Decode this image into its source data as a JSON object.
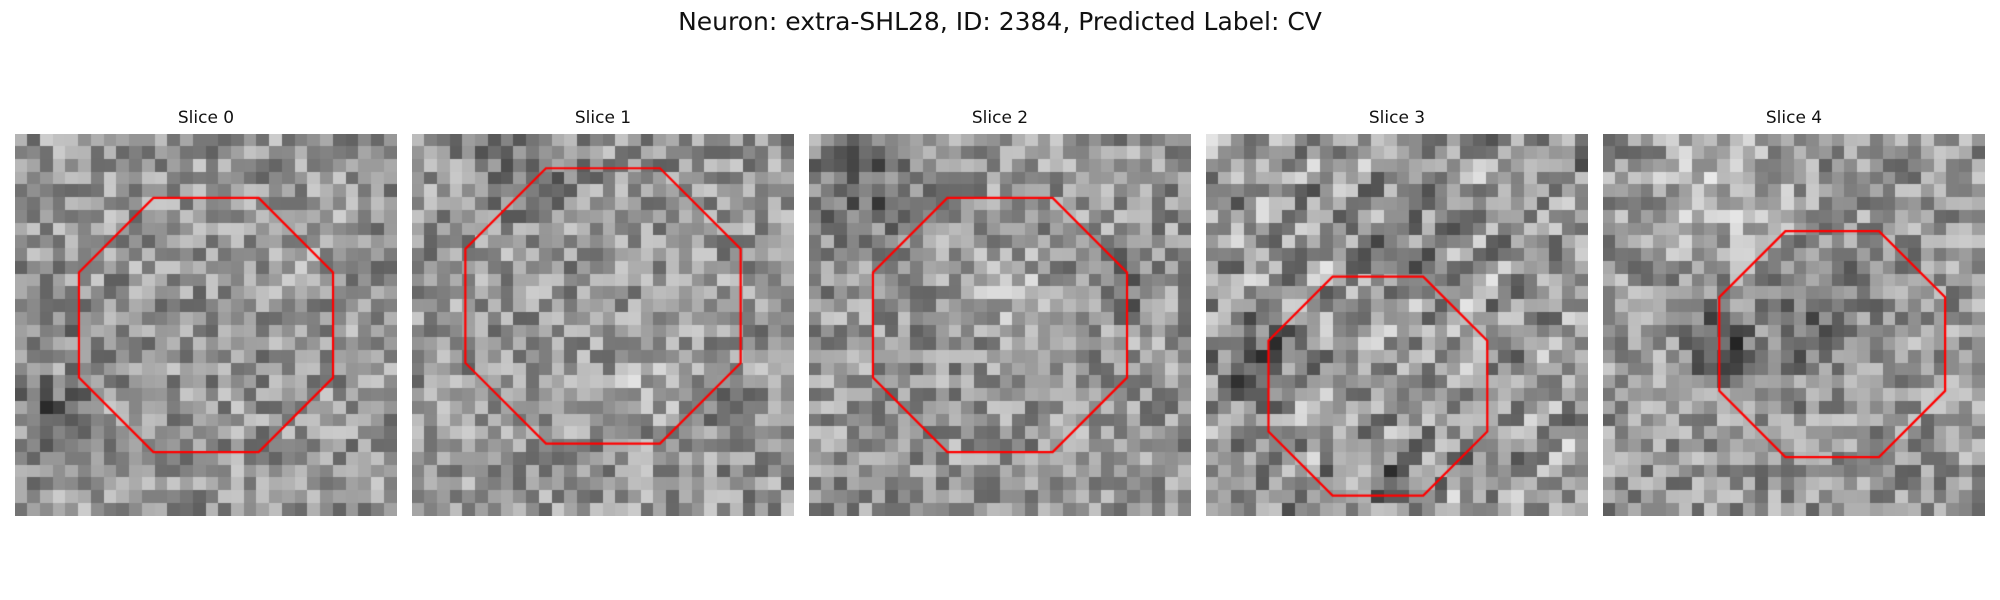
{
  "figure": {
    "title": "Neuron: extra-SHL28, ID: 2384, Predicted Label: CV"
  },
  "style": {
    "contour_color": "#ff0000",
    "colormap": "gray",
    "background": "#ffffff"
  },
  "panels": [
    {
      "label": "Slice 0",
      "contour_center_frac": [
        0.5,
        0.5
      ],
      "contour_radius_frac": 0.36
    },
    {
      "label": "Slice 1",
      "contour_center_frac": [
        0.5,
        0.45
      ],
      "contour_radius_frac": 0.39
    },
    {
      "label": "Slice 2",
      "contour_center_frac": [
        0.5,
        0.5
      ],
      "contour_radius_frac": 0.36
    },
    {
      "label": "Slice 3",
      "contour_center_frac": [
        0.45,
        0.66
      ],
      "contour_radius_frac": 0.31
    },
    {
      "label": "Slice 4",
      "contour_center_frac": [
        0.6,
        0.55
      ],
      "contour_radius_frac": 0.32
    }
  ]
}
